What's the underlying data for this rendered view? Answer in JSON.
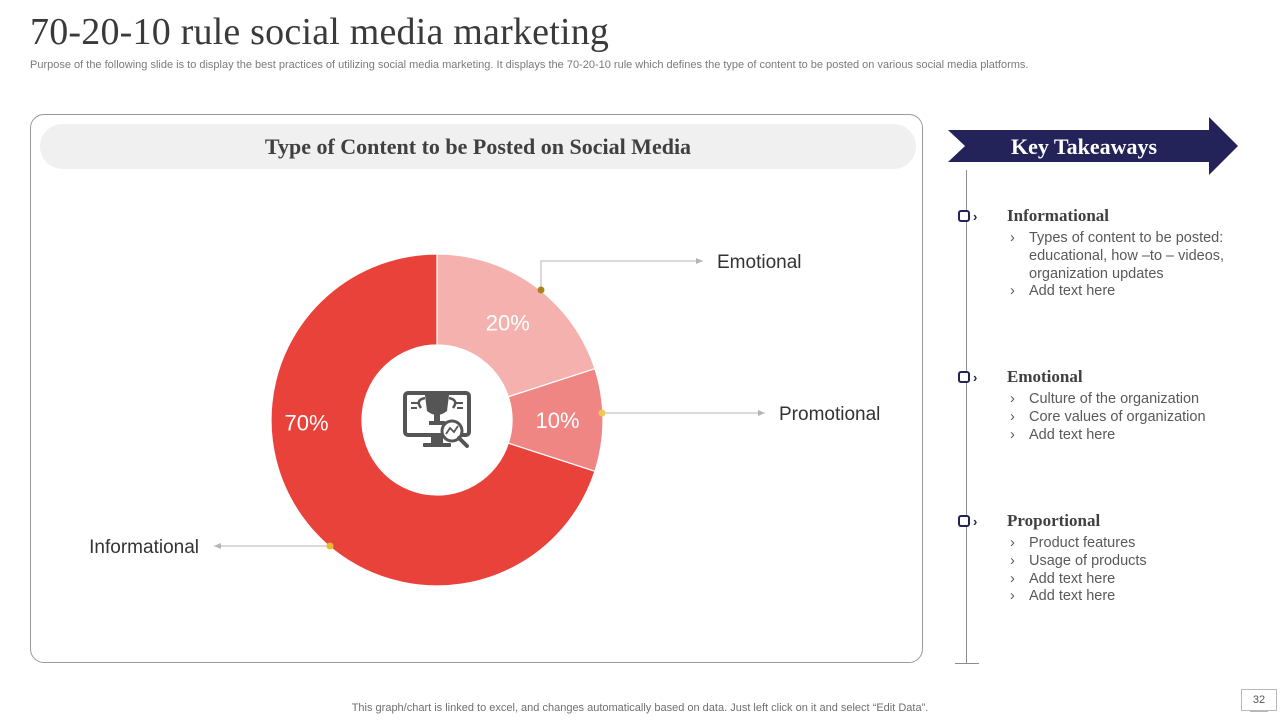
{
  "slide": {
    "title": "70-20-10 rule social media marketing",
    "subtitle": "Purpose of the following slide is to display the best practices of utilizing social media marketing. It displays the 70-20-10 rule which defines the type of content to be posted on various social media platforms.",
    "footer_note": "This graph/chart is linked to excel,  and changes automatically based on data. Just left click on it and select “Edit Data”.",
    "page_number": "32"
  },
  "chart_data": {
    "type": "pie",
    "variant": "donut",
    "title": "Type of Content to be Posted on Social Media",
    "center_icon": "trophy-monitor-analytics-icon",
    "slices": [
      {
        "label": "Emotional",
        "value": 20,
        "value_label": "20%",
        "color": "#f5b1ad",
        "dot_color": "#a8841f"
      },
      {
        "label": "Promotional",
        "value": 10,
        "value_label": "10%",
        "color": "#ef8683",
        "dot_color": "#f2c84e"
      },
      {
        "label": "Informational",
        "value": 70,
        "value_label": "70%",
        "color": "#e9423a",
        "dot_color": "#e8b931"
      }
    ]
  },
  "takeaways": {
    "title": "Key Takeaways",
    "accent_color": "#23235a",
    "sections": [
      {
        "title": "Informational",
        "bullets": [
          "Types of content to be posted: educational, how –to – videos, organization updates",
          "Add text here"
        ]
      },
      {
        "title": "Emotional",
        "bullets": [
          "Culture of the organization",
          "Core values of organization",
          "Add text here"
        ]
      },
      {
        "title": "Proportional",
        "bullets": [
          "Product features",
          "Usage of products",
          "Add text here",
          "Add text here"
        ]
      }
    ]
  }
}
